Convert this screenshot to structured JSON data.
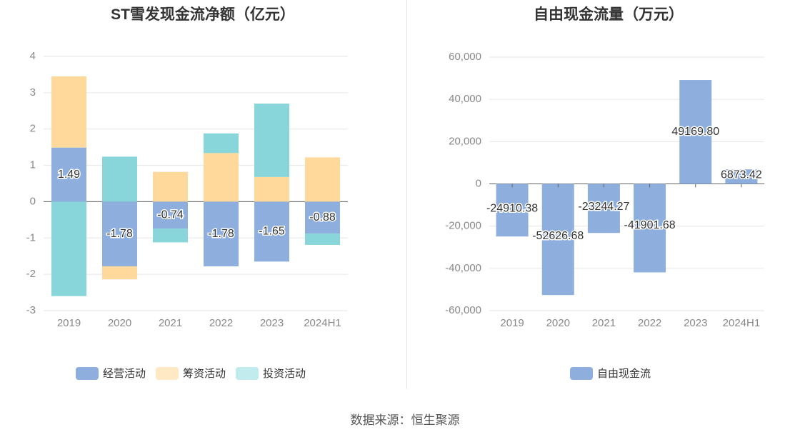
{
  "source": "数据来源：恒生聚源",
  "colors": {
    "operating": "#8eaedd",
    "financing": "#ffd99b",
    "investing": "#88d6da",
    "financing_legend": "#ffe9c4",
    "investing_legend": "#c2ebed",
    "free_cash_flow": "#8eaedd",
    "grid": "#e6e6e6",
    "axis_text": "#888888"
  },
  "chart_data": [
    {
      "type": "bar",
      "stacked": true,
      "title": "ST雪发现金流净额（亿元）",
      "categories": [
        "2019",
        "2020",
        "2021",
        "2022",
        "2023",
        "2024H1"
      ],
      "series": [
        {
          "name": "经营活动",
          "key": "operating",
          "values": [
            1.49,
            -1.78,
            -0.74,
            -1.78,
            -1.65,
            -0.88
          ]
        },
        {
          "name": "筹资活动",
          "key": "financing",
          "values": [
            1.96,
            -0.36,
            0.82,
            1.34,
            0.68,
            1.22
          ]
        },
        {
          "name": "投资活动",
          "key": "investing",
          "values": [
            -2.6,
            1.24,
            -0.38,
            0.54,
            2.02,
            -0.31
          ]
        }
      ],
      "data_labels": [
        "1.49",
        "-1.78",
        "-0.74",
        "-1.78",
        "-1.65",
        "-0.88"
      ],
      "yticks": [
        4,
        3,
        2,
        1,
        0,
        -1,
        -2,
        -3
      ],
      "ylim": [
        -3,
        4
      ],
      "legend_position": "bottom"
    },
    {
      "type": "bar",
      "title": "自由现金流量（万元）",
      "categories": [
        "2019",
        "2020",
        "2021",
        "2022",
        "2023",
        "2024H1"
      ],
      "series": [
        {
          "name": "自由现金流",
          "key": "free_cash_flow",
          "values": [
            -24910.38,
            -52626.68,
            -23244.27,
            -41901.68,
            49169.8,
            6873.42
          ]
        }
      ],
      "data_labels": [
        "-24910.38",
        "-52626.68",
        "-23244.27",
        "-41901.68",
        "49169.80",
        "6873.42"
      ],
      "yticks": [
        "60,000",
        "40,000",
        "20,000",
        "0",
        "-20,000",
        "-40,000",
        "-60,000"
      ],
      "ytick_values": [
        60000,
        40000,
        20000,
        0,
        -20000,
        -40000,
        -60000
      ],
      "ylim": [
        -60000,
        60000
      ],
      "legend_position": "bottom"
    }
  ]
}
